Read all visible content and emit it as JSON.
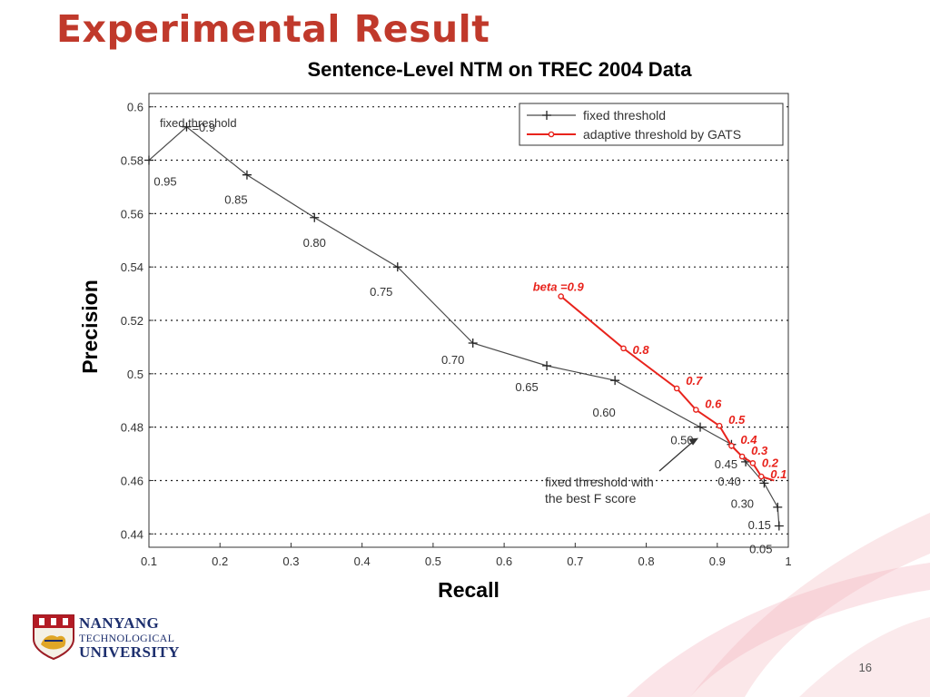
{
  "slide": {
    "title": "Experimental Result",
    "page_number": "16",
    "logo": {
      "line1": "NANYANG",
      "line2": "TECHNOLOGICAL",
      "line3": "UNIVERSITY"
    }
  },
  "colors": {
    "title": "#c0392b",
    "fixed": "#4a4a4a",
    "adaptive": "#e8231c"
  },
  "chart_data": {
    "type": "line",
    "title": "Sentence-Level NTM on TREC 2004 Data",
    "xlabel": "Recall",
    "ylabel": "Precision",
    "xlim": [
      0.1,
      1.0
    ],
    "ylim": [
      0.435,
      0.605
    ],
    "xticks": [
      "0.1",
      "0.2",
      "0.3",
      "0.4",
      "0.5",
      "0.6",
      "0.7",
      "0.8",
      "0.9",
      "1"
    ],
    "yticks": [
      "0.44",
      "0.46",
      "0.48",
      "0.5",
      "0.52",
      "0.54",
      "0.56",
      "0.58",
      "0.6"
    ],
    "grid": true,
    "legend_position": "top-right",
    "series": [
      {
        "name": "fixed threshold",
        "marker": "plus",
        "x": [
          0.1,
          0.153,
          0.238,
          0.333,
          0.45,
          0.556,
          0.66,
          0.756,
          0.876,
          0.92,
          0.94,
          0.966,
          0.985,
          0.987
        ],
        "y": [
          0.58,
          0.5925,
          0.5745,
          0.5585,
          0.54,
          0.5115,
          0.503,
          0.4975,
          0.48,
          0.4735,
          0.467,
          0.459,
          0.45,
          0.443
        ],
        "labels": [
          "0.95",
          "0.9",
          "0.85",
          "0.80",
          "0.75",
          "0.70",
          "0.65",
          "0.60",
          "0.50",
          "0.45",
          "0.40",
          "0.30",
          "0.15",
          "0.05"
        ]
      },
      {
        "name": "adaptive threshold by GATS",
        "marker": "circle",
        "x": [
          0.68,
          0.768,
          0.843,
          0.87,
          0.903,
          0.92,
          0.935,
          0.95,
          0.962,
          0.98
        ],
        "y": [
          0.529,
          0.5095,
          0.4945,
          0.4865,
          0.4805,
          0.473,
          0.469,
          0.4665,
          0.4615,
          0.46
        ],
        "labels": [
          "beta =0.9",
          "0.8",
          "0.7",
          "0.6",
          "0.5",
          "0.4",
          "0.3",
          "0.2",
          "0.1",
          ""
        ]
      }
    ],
    "annotations": [
      {
        "text": "fixed threshold",
        "sub": "fixed threshold"
      },
      {
        "text": "fixed threshold with",
        "line2": "the best F score",
        "arrow_to": [
          0.876,
          0.48
        ]
      }
    ]
  }
}
